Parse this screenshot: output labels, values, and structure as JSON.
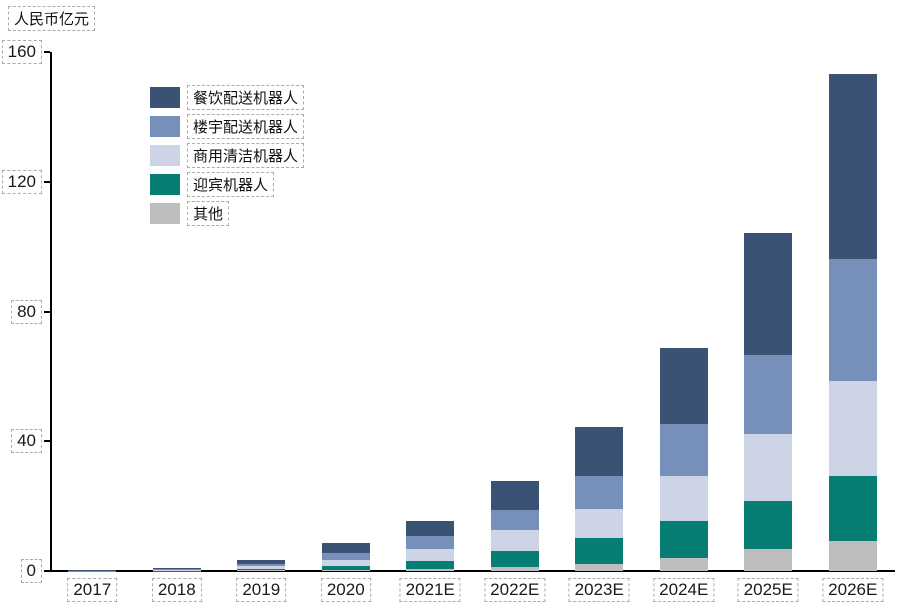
{
  "title": "人民币亿元",
  "y_axis": {
    "unit_label": "人民币亿元",
    "ticks": [
      0,
      40,
      80,
      120,
      160
    ]
  },
  "legend": {
    "position": "upper-left-inside",
    "items": [
      {
        "label": "餐饮配送机器人",
        "color": "#3A5274"
      },
      {
        "label": "楼宇配送机器人",
        "color": "#7790BA"
      },
      {
        "label": "商用清洁机器人",
        "color": "#CCD4E6"
      },
      {
        "label": "迎宾机器人",
        "color": "#067E73"
      },
      {
        "label": "其他",
        "color": "#BEBEBE"
      }
    ]
  },
  "chart_data": {
    "type": "bar",
    "stacked": true,
    "title": "",
    "xlabel": "",
    "ylabel": "人民币亿元",
    "ylim": [
      0,
      160
    ],
    "yticks": [
      0,
      40,
      80,
      120,
      160
    ],
    "grid": false,
    "legend_position": "upper left inside plot",
    "categories": [
      "2017",
      "2018",
      "2019",
      "2020",
      "2021E",
      "2022E",
      "2023E",
      "2024E",
      "2025E",
      "2026E"
    ],
    "series": [
      {
        "name": "餐饮配送机器人",
        "color": "#3A5274",
        "values": [
          0.1,
          0.35,
          1.2,
          2.8,
          4.6,
          8.9,
          15.1,
          23.6,
          37.5,
          57.0
        ]
      },
      {
        "name": "楼宇配送机器人",
        "color": "#7790BA",
        "values": [
          0.05,
          0.3,
          0.8,
          2.4,
          3.9,
          6.2,
          10.0,
          15.8,
          24.6,
          37.7
        ]
      },
      {
        "name": "商用清洁机器人",
        "color": "#CCD4E6",
        "values": [
          0.03,
          0.2,
          0.7,
          1.9,
          3.9,
          6.3,
          8.9,
          14.0,
          20.4,
          29.1
        ]
      },
      {
        "name": "迎宾机器人",
        "color": "#067E73",
        "values": [
          0.02,
          0.15,
          0.5,
          1.2,
          2.5,
          5.1,
          8.1,
          11.3,
          14.8,
          20.0
        ]
      },
      {
        "name": "其他",
        "color": "#BEBEBE",
        "values": [
          0.0,
          0.0,
          0.2,
          0.2,
          0.5,
          1.2,
          2.2,
          4.1,
          6.9,
          9.4
        ]
      }
    ],
    "totals_approx": [
      0.2,
      1.0,
      3.4,
      8.5,
      15.4,
      27.7,
      44.3,
      68.8,
      104.2,
      153.2
    ]
  }
}
